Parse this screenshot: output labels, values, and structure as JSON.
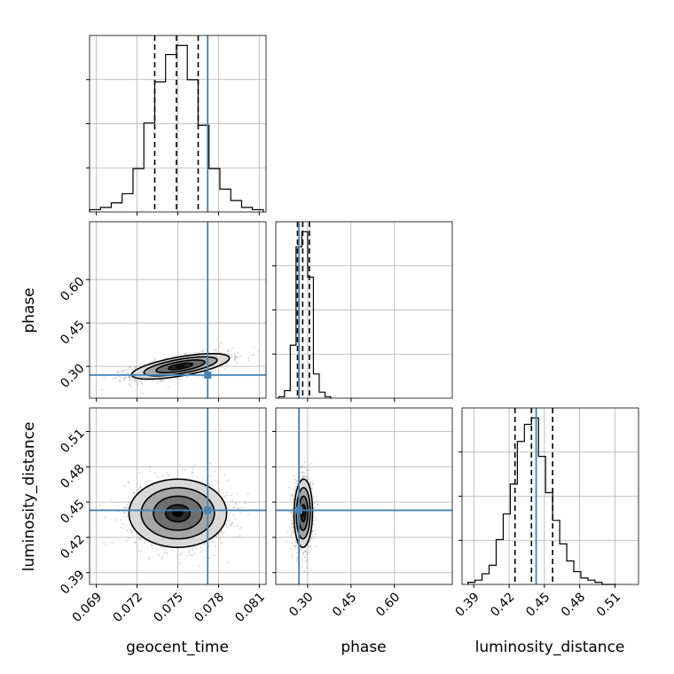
{
  "chart_data": {
    "type": "corner",
    "parameters": [
      "geocent_time",
      "phase",
      "luminosity_distance"
    ],
    "truth": {
      "color": "#4682b4",
      "geocent_time": 0.0772,
      "phase": 0.27,
      "luminosity_distance": 0.443
    },
    "quantile_color": "#000000",
    "contour_color": "#000000",
    "axes": {
      "geocent_time": {
        "range": [
          0.0685,
          0.0815
        ],
        "ticks": [
          0.069,
          0.072,
          0.075,
          0.078,
          0.081
        ],
        "tick_labels": [
          "0.069",
          "0.072",
          "0.075",
          "0.078",
          "0.081"
        ]
      },
      "phase": {
        "range": [
          0.19,
          0.8
        ],
        "ticks": [
          0.3,
          0.45,
          0.6
        ],
        "tick_labels": [
          "0.30",
          "0.45",
          "0.60"
        ]
      },
      "luminosity_distance": {
        "range": [
          0.38,
          0.53
        ],
        "ticks": [
          0.39,
          0.42,
          0.45,
          0.48,
          0.51
        ],
        "tick_labels": [
          "0.39",
          "0.42",
          "0.45",
          "0.48",
          "0.51"
        ]
      }
    },
    "histograms": [
      {
        "param": "geocent_time",
        "bin_edges": [
          0.0685,
          0.0693,
          0.0701,
          0.0709,
          0.0717,
          0.0725,
          0.0733,
          0.0741,
          0.0749,
          0.0757,
          0.0765,
          0.0773,
          0.0781,
          0.0789,
          0.0797,
          0.0805,
          0.0813
        ],
        "counts": [
          1,
          2,
          4,
          8,
          19,
          39,
          57,
          69,
          73,
          58,
          38,
          19,
          10,
          5,
          2,
          1
        ],
        "quantiles": [
          0.0733,
          0.0749,
          0.0765
        ]
      },
      {
        "param": "phase",
        "bin_edges": [
          0.2,
          0.22,
          0.24,
          0.26,
          0.28,
          0.3,
          0.32,
          0.34,
          0.36,
          0.38
        ],
        "counts": [
          1,
          5,
          35,
          100,
          110,
          80,
          16,
          4,
          1
        ],
        "quantiles": [
          0.265,
          0.283,
          0.306
        ]
      },
      {
        "param": "luminosity_distance",
        "bin_edges": [
          0.385,
          0.391,
          0.397,
          0.403,
          0.409,
          0.415,
          0.421,
          0.427,
          0.433,
          0.439,
          0.445,
          0.451,
          0.457,
          0.463,
          0.469,
          0.475,
          0.481,
          0.487,
          0.493,
          0.499,
          0.505,
          0.511
        ],
        "counts": [
          1,
          2,
          5,
          9,
          21,
          33,
          47,
          67,
          75,
          78,
          60,
          43,
          30,
          19,
          11,
          6,
          3,
          2,
          1,
          0,
          0
        ],
        "quantiles": [
          0.425,
          0.439,
          0.457
        ]
      }
    ],
    "scatter_panels": [
      {
        "x": "geocent_time",
        "y": "phase",
        "mean": [
          0.0752,
          0.3
        ],
        "sd": [
          0.0018,
          0.022
        ],
        "correlation": 0.65,
        "levels_sigma": [
          0.5,
          1.0,
          1.5,
          2.0
        ]
      },
      {
        "x": "geocent_time",
        "y": "luminosity_distance",
        "mean": [
          0.075,
          0.4405
        ],
        "sd": [
          0.0018,
          0.0145
        ],
        "correlation": 0.0,
        "levels_sigma": [
          0.5,
          1.0,
          1.5,
          2.0
        ]
      },
      {
        "x": "phase",
        "y": "luminosity_distance",
        "mean": [
          0.285,
          0.4405
        ],
        "sd": [
          0.016,
          0.0145
        ],
        "correlation": 0.05,
        "levels_sigma": [
          0.5,
          1.0,
          1.5,
          2.0
        ]
      }
    ],
    "xlabels": [
      "geocent_time",
      "phase",
      "luminosity_distance"
    ],
    "ylabels": [
      "",
      "phase",
      "luminosity_distance"
    ]
  }
}
